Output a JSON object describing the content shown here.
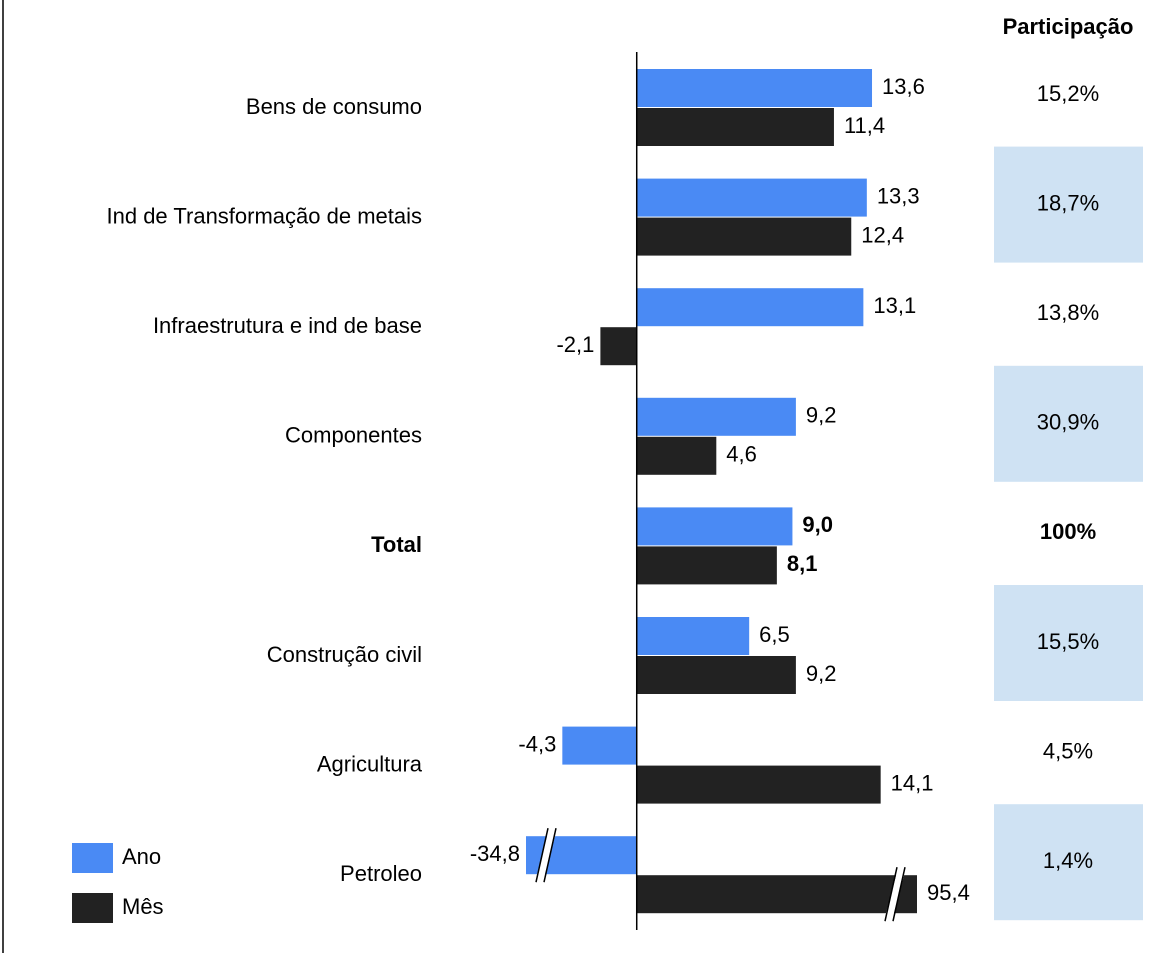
{
  "chart_data": {
    "type": "bar",
    "categories": [
      "Bens de consumo",
      "Ind de Transformação de metais",
      "Infraestrutura e ind de base",
      "Componentes",
      "Total",
      "Construção civil",
      "Agricultura",
      "Petroleo"
    ],
    "bold": [
      false,
      false,
      false,
      false,
      true,
      false,
      false,
      false
    ],
    "series": [
      {
        "name": "Ano",
        "color": "#4a8af4",
        "values": [
          13.6,
          13.3,
          13.1,
          9.2,
          9.0,
          6.5,
          -4.3,
          -34.8
        ],
        "value_labels": [
          "13,6",
          "13,3",
          "13,1",
          "9,2",
          "9,0",
          "6,5",
          "-4,3",
          "-34,8"
        ]
      },
      {
        "name": "Mês",
        "color": "#222222",
        "values": [
          11.4,
          12.4,
          -2.1,
          4.6,
          8.1,
          9.2,
          14.1,
          95.4
        ],
        "value_labels": [
          "11,4",
          "12,4",
          "-2,1",
          "4,6",
          "8,1",
          "9,2",
          "14,1",
          "95,4"
        ]
      }
    ],
    "xlim": [
      -6.4,
      16.2
    ],
    "axis_break": true,
    "legend": "lower left",
    "share": {
      "title": "Participação",
      "values": [
        "15,2%",
        "18,7%",
        "13,8%",
        "30,9%",
        "100%",
        "15,5%",
        "4,5%",
        "1,4%"
      ],
      "color": "#cfe2f3"
    }
  }
}
